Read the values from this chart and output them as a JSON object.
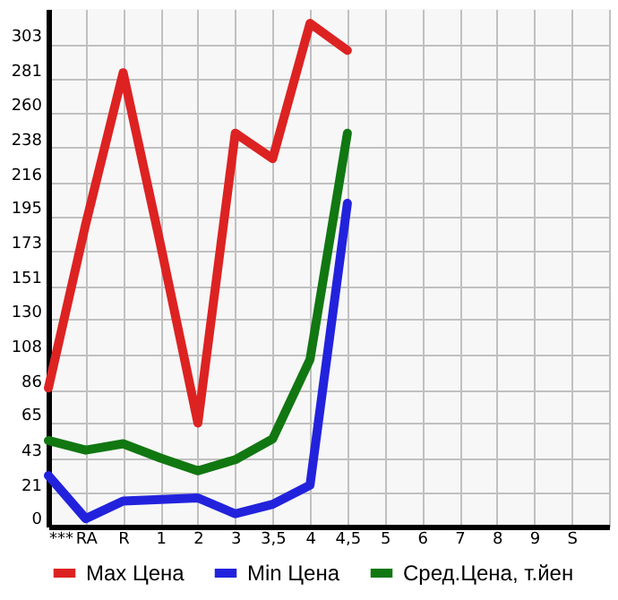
{
  "chart_data": {
    "type": "line",
    "categories": [
      "***",
      "RA",
      "R",
      "1",
      "2",
      "3",
      "3,5",
      "4",
      "4,5",
      "5",
      "6",
      "7",
      "8",
      "9",
      "S",
      null
    ],
    "series": [
      {
        "name": "Max Цена",
        "color": "#dd2222",
        "values": [
          87,
          190,
          285,
          177,
          65,
          247,
          231,
          316,
          299,
          null,
          null,
          null,
          null,
          null,
          null,
          null
        ]
      },
      {
        "name": "Min Цена",
        "color": "#2222dd",
        "values": [
          32,
          5,
          16,
          17,
          18,
          8,
          14,
          26,
          203,
          null,
          null,
          null,
          null,
          null,
          null,
          null
        ]
      },
      {
        "name": "Сред.Цена, т.йен",
        "color": "#117711",
        "values": [
          54,
          48,
          52,
          43,
          35,
          42,
          55,
          105,
          247,
          null,
          null,
          null,
          null,
          null,
          null,
          null
        ]
      }
    ],
    "ylim": [
      0,
      325
    ],
    "yticks": [
      0,
      21,
      43,
      65,
      86,
      108,
      130,
      151,
      173,
      195,
      216,
      238,
      260,
      281,
      303
    ],
    "grid": true,
    "legend": "bottom",
    "marker": "none",
    "line_style": "solid"
  }
}
